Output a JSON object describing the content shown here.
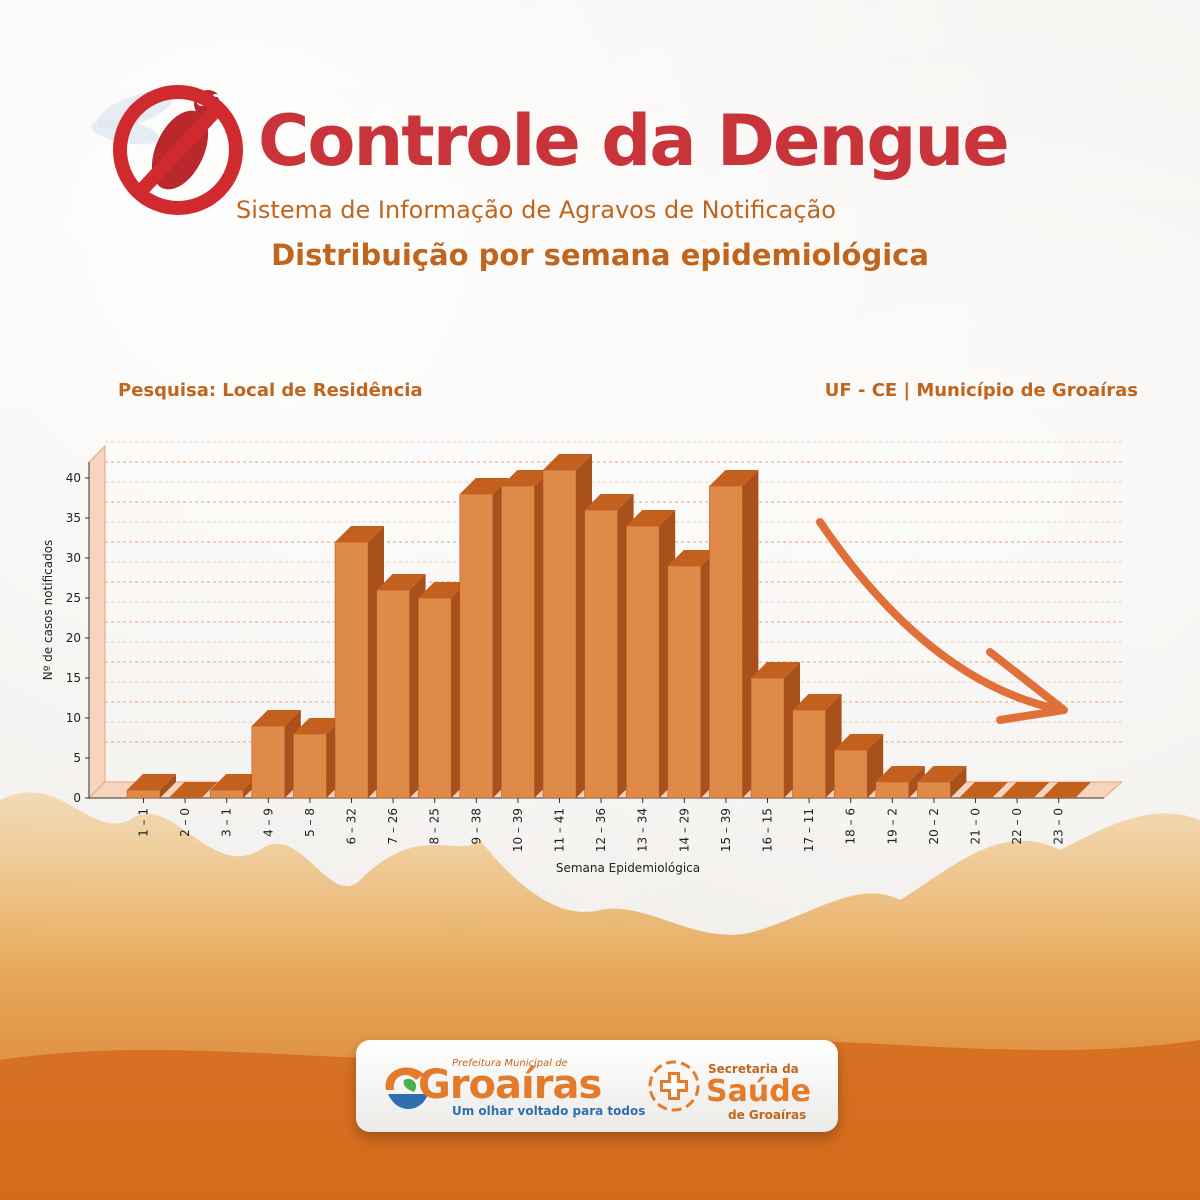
{
  "header": {
    "title": "Controle da Dengue",
    "subtitle": "Sistema  de Informação de Agravos de Notificação",
    "heading": "Distribuição por semana epidemiológica"
  },
  "meta": {
    "left": "Pesquisa: Local de Residência",
    "right": "UF - CE | Município de Groaíras"
  },
  "footer": {
    "brand_small": "Prefeitura Municipal de",
    "brand_name": "Groaíras",
    "brand_tag": "Um olhar voltado para todos",
    "sec_small": "Secretaria da",
    "sec_name": "Saúde",
    "sec_sub": "de Groaíras"
  },
  "colors": {
    "bar_front": "#e08a4a",
    "bar_top": "#c3601e",
    "bar_side": "#a9511a",
    "accent": "#c0651d",
    "title_red": "#c8343a",
    "arrow": "#e0703a"
  },
  "chart_data": {
    "type": "bar",
    "categories": [
      "1 – 1",
      "2 – 0",
      "3 – 1",
      "4 – 9",
      "5 – 8",
      "6 – 32",
      "7 – 26",
      "8 – 25",
      "9 – 38",
      "10 – 39",
      "11 – 41",
      "12 – 36",
      "13 – 34",
      "14 – 29",
      "15 – 39",
      "16 – 15",
      "17 – 11",
      "18 – 6",
      "19 – 2",
      "20 – 2",
      "21 – 0",
      "22 – 0",
      "23 – 0"
    ],
    "values": [
      1,
      0,
      1,
      9,
      8,
      32,
      26,
      25,
      38,
      39,
      41,
      36,
      34,
      29,
      39,
      15,
      11,
      6,
      2,
      2,
      0,
      0,
      0
    ],
    "yticks": [
      "0",
      "5",
      "10",
      "15",
      "20",
      "25",
      "30",
      "35",
      "40"
    ],
    "xlabel": "Semana Epidemiológica",
    "ylabel": "Nº de casos notificados",
    "ylim": [
      0,
      42
    ],
    "grid": true
  }
}
